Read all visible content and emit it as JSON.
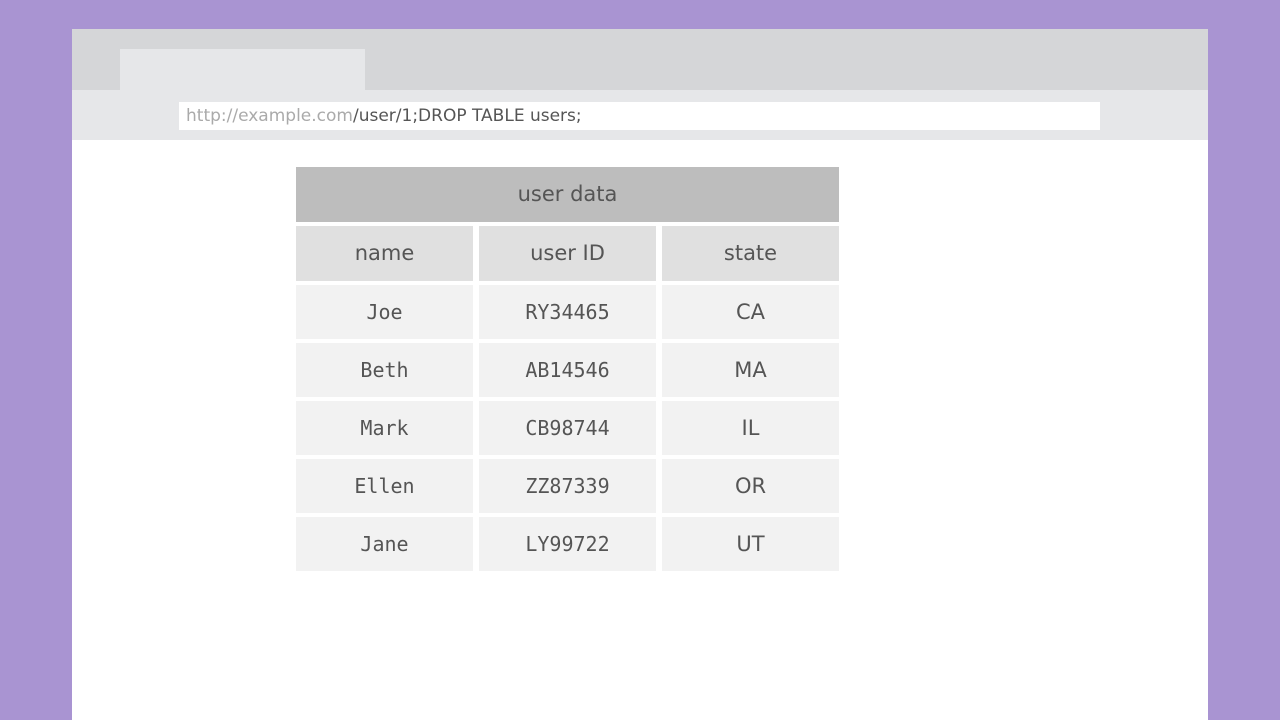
{
  "browser": {
    "address_host": "http://example.com",
    "address_path": "/user/1;DROP TABLE users;"
  },
  "table": {
    "title": "user data",
    "headers": [
      "name",
      "user ID",
      "state"
    ],
    "rows": [
      [
        "Joe",
        "RY34465",
        "CA"
      ],
      [
        "Beth",
        "AB14546",
        "MA"
      ],
      [
        "Mark",
        "CB98744",
        "IL"
      ],
      [
        "Ellen",
        "ZZ87339",
        "OR"
      ],
      [
        "Jane",
        "LY99722",
        "UT"
      ]
    ]
  },
  "colors": {
    "background": "#a994d2",
    "title_bar": "#bdbdbd",
    "header": "#e0e0e0",
    "cell": "#f2f2f2"
  }
}
